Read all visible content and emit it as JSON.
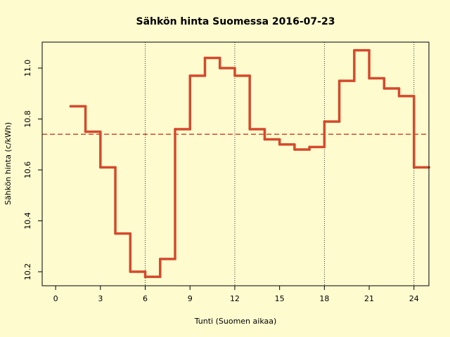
{
  "chart_data": {
    "type": "step",
    "title": "Sähkön hinta Suomessa 2016-07-23",
    "x_label": "Tunti (Suomen aikaa)",
    "y_label": "Sähkön hinta (c/kWh)",
    "x": [
      1,
      2,
      3,
      4,
      5,
      6,
      7,
      8,
      9,
      10,
      11,
      12,
      13,
      14,
      15,
      16,
      17,
      18,
      19,
      20,
      21,
      22,
      23,
      24,
      25
    ],
    "values": [
      10.85,
      10.75,
      10.61,
      10.35,
      10.2,
      10.18,
      10.25,
      10.76,
      10.97,
      11.04,
      11.0,
      10.97,
      10.76,
      10.72,
      10.7,
      10.68,
      10.69,
      10.79,
      10.95,
      11.07,
      10.96,
      10.92,
      10.89,
      10.61,
      10.61
    ],
    "color": "#d44a2c",
    "mean_line": {
      "value": 10.74,
      "color": "#d44a2c"
    },
    "vlines": [
      6,
      12,
      18,
      24
    ],
    "xlim": [
      -0.9,
      25
    ],
    "ylim": [
      10.145,
      11.102
    ],
    "xticks": [
      0,
      3,
      6,
      9,
      12,
      15,
      18,
      21,
      24
    ],
    "yticks": [
      10.2,
      10.4,
      10.6,
      10.8,
      {
        "value": 11,
        "label": "11.0"
      }
    ]
  }
}
